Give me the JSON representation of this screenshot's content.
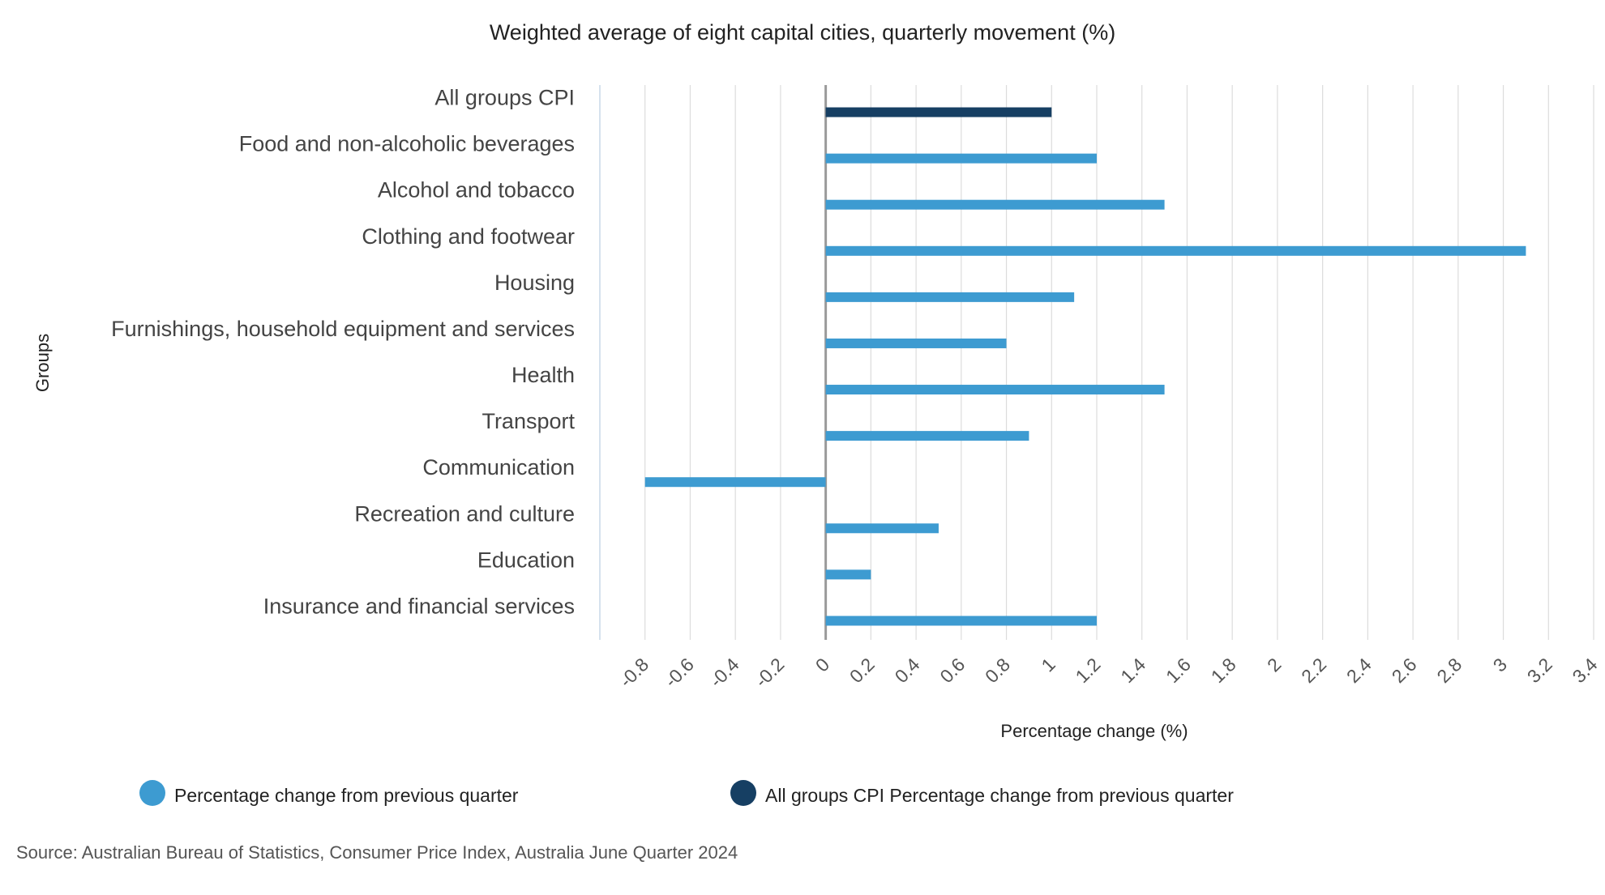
{
  "chart_data": {
    "type": "bar",
    "orientation": "horizontal",
    "title": "Weighted average of eight capital cities, quarterly movement (%)",
    "xlabel": "Percentage change (%)",
    "ylabel": "Groups",
    "xlim": [
      -1.0,
      3.4
    ],
    "xticks": [
      "-0.8",
      "-0.6",
      "-0.4",
      "-0.2",
      "0",
      "0.2",
      "0.4",
      "0.6",
      "0.8",
      "1",
      "1.2",
      "1.4",
      "1.6",
      "1.8",
      "2",
      "2.2",
      "2.4",
      "2.6",
      "2.8",
      "3",
      "3.2",
      "3.4"
    ],
    "grid": true,
    "legend_position": "bottom",
    "categories": [
      "All groups CPI",
      "Food and non-alcoholic beverages",
      "Alcohol and tobacco",
      "Clothing and footwear",
      "Housing",
      "Furnishings, household equipment and services",
      "Health",
      "Transport",
      "Communication",
      "Recreation and culture",
      "Education",
      "Insurance and financial services"
    ],
    "series": [
      {
        "name": "Percentage change from previous quarter",
        "color": "#3d9bd1",
        "values": [
          null,
          1.2,
          1.5,
          3.1,
          1.1,
          0.8,
          1.5,
          0.9,
          -0.8,
          0.5,
          0.2,
          1.2
        ]
      },
      {
        "name": "All groups CPI Percentage change from previous quarter",
        "color": "#163f63",
        "values": [
          1.0,
          null,
          null,
          null,
          null,
          null,
          null,
          null,
          null,
          null,
          null,
          null
        ]
      }
    ]
  },
  "source": "Source: Australian Bureau of Statistics, Consumer Price Index, Australia June Quarter 2024"
}
